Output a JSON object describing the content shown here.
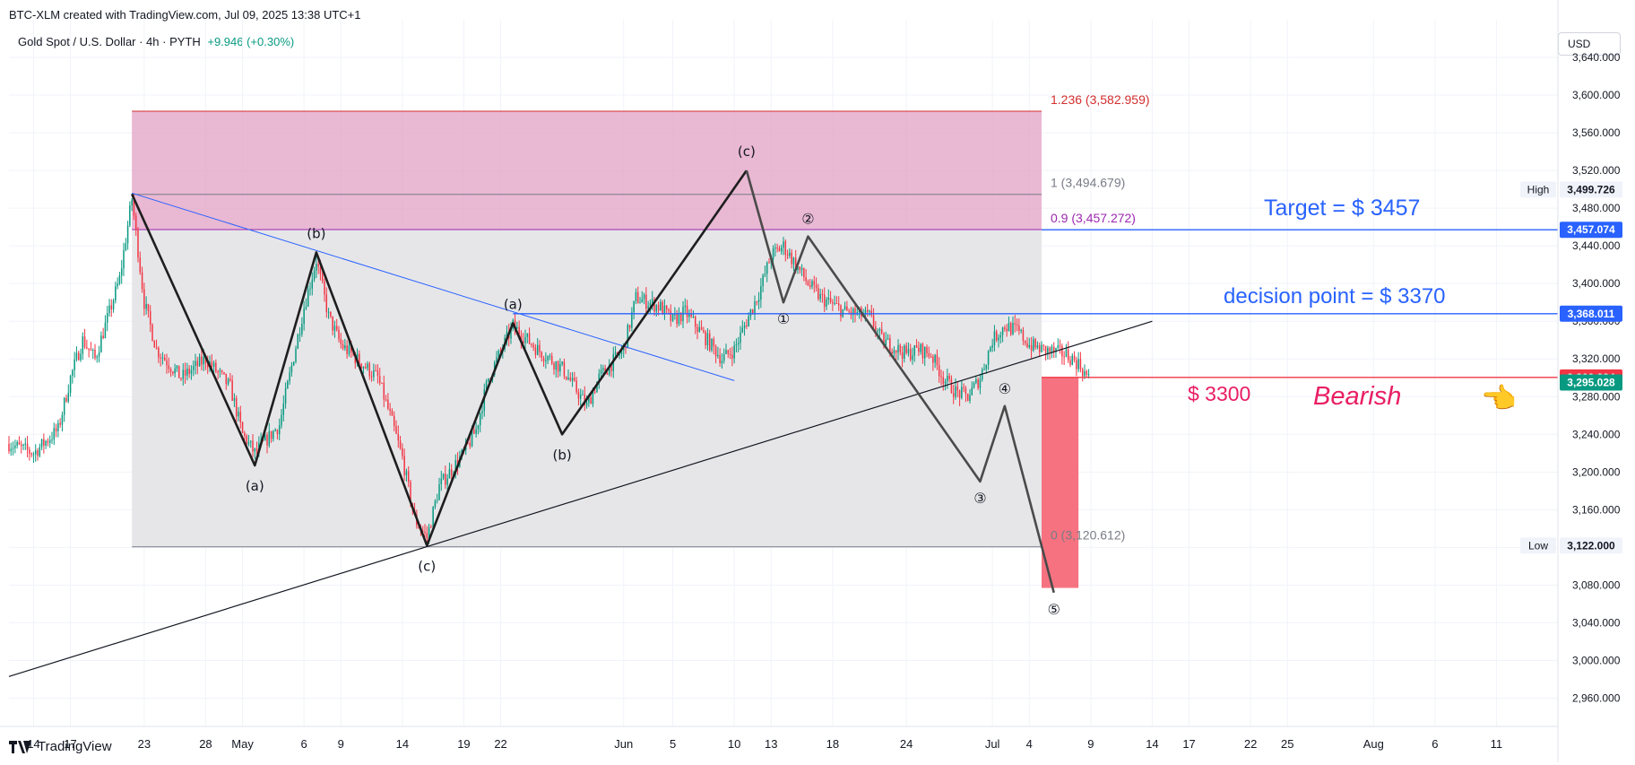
{
  "header": {
    "created_line": "BTC-XLM created with TradingView.com, Jul 09, 2025 13:38 UTC+1",
    "symbol": "Gold Spot / U.S. Dollar · 4h · PYTH",
    "change": "+9.946 (+0.30%)"
  },
  "currency_button": "USD",
  "footer": {
    "brand": "TradingView"
  },
  "colors": {
    "up": "#089981",
    "down": "#f23645",
    "zone_pink": "#e3a6c8",
    "zone_grey": "#e6e6e8",
    "bear_box": "#f77280",
    "blue_line": "#2962ff"
  },
  "chart_data": {
    "type": "candlestick",
    "ylim": [
      2930,
      3680
    ],
    "xlim_dates": [
      "2025-04-12",
      "2025-08-16"
    ],
    "y_tick_labels": [
      "3,640.000",
      "3,600.000",
      "3,560.000",
      "3,520.000",
      "3,480.000",
      "3,440.000",
      "3,400.000",
      "3,360.000",
      "3,320.000",
      "3,280.000",
      "3,240.000",
      "3,200.000",
      "3,160.000",
      "3,120.000",
      "3,080.000",
      "3,040.000",
      "3,000.000",
      "2,960.000"
    ],
    "y_tick_values": [
      3640,
      3600,
      3560,
      3520,
      3480,
      3440,
      3400,
      3360,
      3320,
      3280,
      3240,
      3200,
      3160,
      3120,
      3080,
      3040,
      3000,
      2960
    ],
    "x_ticks": [
      {
        "date": "2025-04-14",
        "label": "14"
      },
      {
        "date": "2025-04-17",
        "label": "17"
      },
      {
        "date": "2025-04-23",
        "label": "23"
      },
      {
        "date": "2025-04-28",
        "label": "28"
      },
      {
        "date": "2025-05-01",
        "label": "May"
      },
      {
        "date": "2025-05-06",
        "label": "6"
      },
      {
        "date": "2025-05-09",
        "label": "9"
      },
      {
        "date": "2025-05-14",
        "label": "14"
      },
      {
        "date": "2025-05-19",
        "label": "19"
      },
      {
        "date": "2025-05-22",
        "label": "22"
      },
      {
        "date": "2025-06-01",
        "label": "Jun"
      },
      {
        "date": "2025-06-05",
        "label": "5"
      },
      {
        "date": "2025-06-10",
        "label": "10"
      },
      {
        "date": "2025-06-13",
        "label": "13"
      },
      {
        "date": "2025-06-18",
        "label": "18"
      },
      {
        "date": "2025-06-24",
        "label": "24"
      },
      {
        "date": "2025-07-01",
        "label": "Jul"
      },
      {
        "date": "2025-07-04",
        "label": "4"
      },
      {
        "date": "2025-07-09",
        "label": "9"
      },
      {
        "date": "2025-07-14",
        "label": "14"
      },
      {
        "date": "2025-07-17",
        "label": "17"
      },
      {
        "date": "2025-07-22",
        "label": "22"
      },
      {
        "date": "2025-07-25",
        "label": "25"
      },
      {
        "date": "2025-08-01",
        "label": "Aug"
      },
      {
        "date": "2025-08-06",
        "label": "6"
      },
      {
        "date": "2025-08-11",
        "label": "11"
      }
    ],
    "price_path": [
      [
        "2025-04-12",
        3230
      ],
      [
        "2025-04-14",
        3220
      ],
      [
        "2025-04-16",
        3245
      ],
      [
        "2025-04-17",
        3300
      ],
      [
        "2025-04-18",
        3340
      ],
      [
        "2025-04-19",
        3320
      ],
      [
        "2025-04-21",
        3405
      ],
      [
        "2025-04-22",
        3490
      ],
      [
        "2025-04-23",
        3380
      ],
      [
        "2025-04-24",
        3330
      ],
      [
        "2025-04-26",
        3300
      ],
      [
        "2025-04-28",
        3320
      ],
      [
        "2025-04-30",
        3290
      ],
      [
        "2025-05-01",
        3240
      ],
      [
        "2025-05-02",
        3220
      ],
      [
        "2025-05-04",
        3250
      ],
      [
        "2025-05-06",
        3375
      ],
      [
        "2025-05-07",
        3425
      ],
      [
        "2025-05-08",
        3365
      ],
      [
        "2025-05-09",
        3335
      ],
      [
        "2025-05-12",
        3300
      ],
      [
        "2025-05-13",
        3260
      ],
      [
        "2025-05-14",
        3215
      ],
      [
        "2025-05-15",
        3150
      ],
      [
        "2025-05-16",
        3130
      ],
      [
        "2025-05-17",
        3185
      ],
      [
        "2025-05-19",
        3220
      ],
      [
        "2025-05-20",
        3245
      ],
      [
        "2025-05-21",
        3300
      ],
      [
        "2025-05-23",
        3355
      ],
      [
        "2025-05-25",
        3330
      ],
      [
        "2025-05-27",
        3310
      ],
      [
        "2025-05-29",
        3270
      ],
      [
        "2025-05-30",
        3300
      ],
      [
        "2025-06-01",
        3330
      ],
      [
        "2025-06-02",
        3385
      ],
      [
        "2025-06-04",
        3375
      ],
      [
        "2025-06-05",
        3360
      ],
      [
        "2025-06-06",
        3370
      ],
      [
        "2025-06-09",
        3320
      ],
      [
        "2025-06-10",
        3330
      ],
      [
        "2025-06-12",
        3390
      ],
      [
        "2025-06-13",
        3430
      ],
      [
        "2025-06-14",
        3440
      ],
      [
        "2025-06-16",
        3400
      ],
      [
        "2025-06-17",
        3385
      ],
      [
        "2025-06-19",
        3370
      ],
      [
        "2025-06-21",
        3365
      ],
      [
        "2025-06-22",
        3340
      ],
      [
        "2025-06-24",
        3325
      ],
      [
        "2025-06-25",
        3330
      ],
      [
        "2025-06-26",
        3325
      ],
      [
        "2025-06-27",
        3300
      ],
      [
        "2025-06-28",
        3285
      ],
      [
        "2025-06-29",
        3280
      ],
      [
        "2025-06-30",
        3300
      ],
      [
        "2025-07-01",
        3340
      ],
      [
        "2025-07-02",
        3355
      ],
      [
        "2025-07-03",
        3350
      ],
      [
        "2025-07-04",
        3335
      ],
      [
        "2025-07-05",
        3330
      ],
      [
        "2025-07-07",
        3325
      ],
      [
        "2025-07-08",
        3315
      ],
      [
        "2025-07-09",
        3295
      ]
    ],
    "annotations": {
      "pink_zone": {
        "x_start": "2025-04-22",
        "x_end": "2025-07-05",
        "y_bottom": 3457.272,
        "y_top": 3582.959
      },
      "grey_zone": {
        "x_start": "2025-04-22",
        "x_end": "2025-07-05",
        "y_bottom": 3120.612,
        "y_top": 3457.272
      },
      "fib_levels": [
        {
          "label": "1.236 (3,582.959)",
          "value": 3582.959,
          "color": "#d32f2f"
        },
        {
          "label": "1 (3,494.679)",
          "value": 3494.679,
          "color": "#787b86"
        },
        {
          "label": "0.9 (3,457.272)",
          "value": 3457.272,
          "color": "#9c27b0"
        },
        {
          "label": "0 (3,120.612)",
          "value": 3120.612,
          "color": "#787b86"
        }
      ],
      "target_text": "Target = $ 3457",
      "decision_text": "decision point = $ 3370",
      "bear_price_text": "$ 3300",
      "bearish_text": "Bearish",
      "pointer_emoji": "👈",
      "target_line": 3457.074,
      "decision_line": 3368.011,
      "bear_line": 3300.394,
      "bear_box": {
        "x_start": "2025-07-05",
        "x_end": "2025-07-08",
        "y_top": 3300.394,
        "y_bottom": 3077
      },
      "wave_abc": {
        "points": [
          [
            "2025-04-22",
            3495
          ],
          [
            "2025-05-02",
            3207
          ],
          [
            "2025-05-07",
            3433
          ],
          [
            "2025-05-16",
            3122
          ],
          [
            "2025-05-23",
            3358
          ],
          [
            "2025-05-27",
            3240
          ],
          [
            "2025-06-11",
            3520
          ]
        ],
        "labels": [
          {
            "at": 1,
            "text": "(a)",
            "pos": "below"
          },
          {
            "at": 2,
            "text": "(b)",
            "pos": "above"
          },
          {
            "at": 3,
            "text": "(c)",
            "pos": "below"
          },
          {
            "at": 4,
            "text": "(a)",
            "pos": "above"
          },
          {
            "at": 5,
            "text": "(b)",
            "pos": "below"
          },
          {
            "at": 6,
            "text": "(c)",
            "pos": "above"
          }
        ]
      },
      "wave_12345": {
        "points": [
          [
            "2025-06-11",
            3520
          ],
          [
            "2025-06-14",
            3380
          ],
          [
            "2025-06-16",
            3450
          ],
          [
            "2025-06-30",
            3190
          ],
          [
            "2025-07-02",
            3270
          ],
          [
            "2025-07-06",
            3072
          ]
        ],
        "labels": [
          {
            "at": 1,
            "text": "①"
          },
          {
            "at": 2,
            "text": "②"
          },
          {
            "at": 3,
            "text": "③"
          },
          {
            "at": 4,
            "text": "④"
          },
          {
            "at": 5,
            "text": "⑤"
          }
        ]
      },
      "blue_trend": {
        "from": [
          "2025-04-22",
          3496
        ],
        "to": [
          "2025-06-10",
          3297
        ]
      },
      "black_trend": {
        "from": [
          "2025-04-12",
          2983
        ],
        "to": [
          "2025-07-14",
          3360
        ]
      }
    },
    "price_labels": [
      {
        "value": 3499.726,
        "text": "3,499.726",
        "tag": "High",
        "bg": "#f0f3fa",
        "fg": "#131722"
      },
      {
        "value": 3457.074,
        "text": "3,457.074",
        "bg": "#2962ff",
        "fg": "#ffffff"
      },
      {
        "value": 3368.011,
        "text": "3,368.011",
        "bg": "#2962ff",
        "fg": "#ffffff"
      },
      {
        "value": 3300.394,
        "text": "3,300.394",
        "bg": "#f23645",
        "fg": "#ffffff"
      },
      {
        "value": 3295.028,
        "text": "3,295.028",
        "bg": "#089981",
        "fg": "#ffffff"
      },
      {
        "value": 3122.0,
        "text": "3,122.000",
        "tag": "Low",
        "bg": "#f0f3fa",
        "fg": "#131722"
      }
    ]
  }
}
